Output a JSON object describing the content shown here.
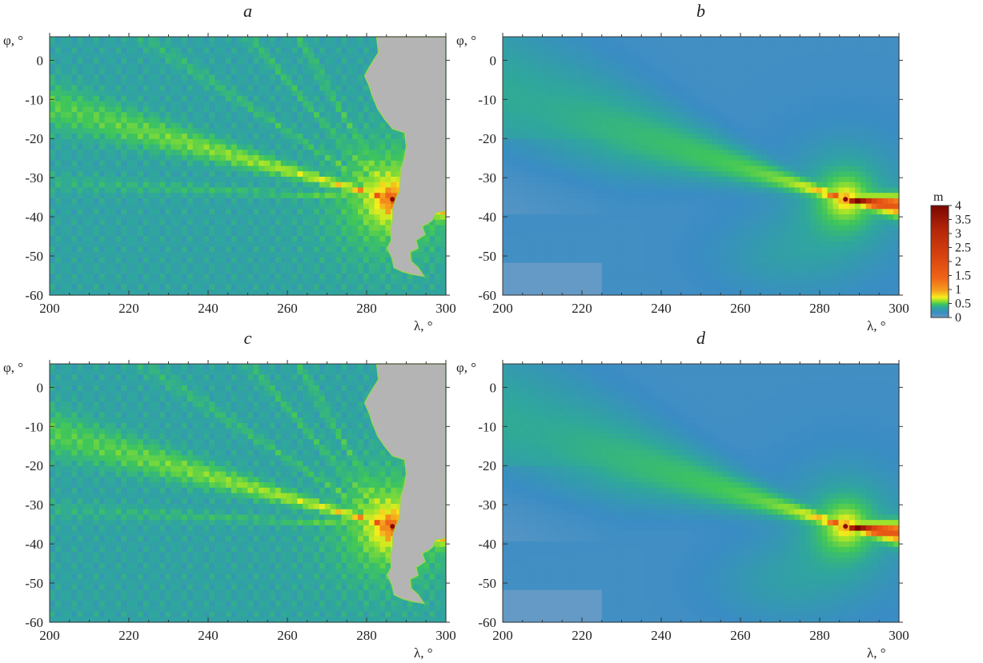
{
  "chart_data": {
    "type": "heatmap",
    "panels": [
      {
        "title": "a",
        "smooth": false,
        "land": true
      },
      {
        "title": "b",
        "smooth": true,
        "land": false
      },
      {
        "title": "c",
        "smooth": false,
        "land": true
      },
      {
        "title": "d",
        "smooth": true,
        "land": false
      }
    ],
    "xlabel": "λ, °",
    "ylabel": "φ, °",
    "xlim": [
      200,
      300
    ],
    "ylim": [
      -60,
      6
    ],
    "xticks": [
      200,
      220,
      240,
      260,
      280,
      300
    ],
    "yticks": [
      0,
      -10,
      -20,
      -30,
      -40,
      -50,
      -60
    ],
    "colorbar": {
      "unit": "m",
      "range": [
        0,
        4
      ],
      "ticks": [
        "4",
        "3.5",
        "3",
        "2.5",
        "2",
        "1.5",
        "1",
        "0.5",
        "0"
      ]
    },
    "source_point": {
      "lon": 286.5,
      "lat": -35.5
    }
  },
  "colors": {
    "land": "#b4b4b4",
    "low": "#3a8cc4",
    "mid": "#3fc65a",
    "high": "#f0ee1a",
    "peak": "#8a0a00"
  }
}
